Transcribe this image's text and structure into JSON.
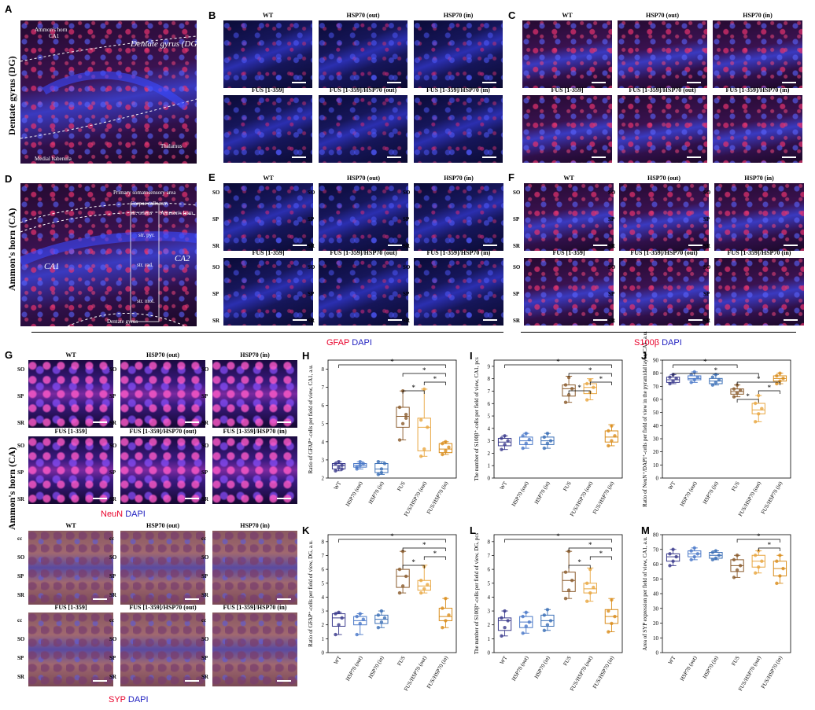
{
  "panels": {
    "A": {
      "label": "A",
      "side": "Dentate gyrus (DG)",
      "texts": [
        "Ammon's horn",
        "CA1",
        "Dentate gyrus (DG)",
        "Thalamus",
        "Medial habenula"
      ]
    },
    "B": {
      "label": "B",
      "titles": [
        "WT",
        "HSP70 (out)",
        "HSP70 (in)",
        "FUS [1-359]",
        "FUS [1-359]/HSP70 (out)",
        "FUS [1-359]/HSP70 (in)"
      ]
    },
    "C": {
      "label": "C",
      "titles": [
        "WT",
        "HSP70 (out)",
        "HSP70 (in)",
        "FUS [1-359]",
        "FUS [1-359]/HSP70 (out)",
        "FUS [1-359]/HSP70 (in)"
      ]
    },
    "D": {
      "label": "D",
      "side": "Ammon's horn (CA)",
      "texts": [
        "Primary somatosensory area",
        "Corpus callosum",
        "str. oriens",
        "Ammon's horn",
        "str. pyr.",
        "CA1",
        "CA2",
        "str. rad.",
        "str. mol.",
        "Dentate gyrus"
      ]
    },
    "E": {
      "label": "E",
      "titles": [
        "WT",
        "HSP70 (out)",
        "HSP70 (in)",
        "FUS [1-359]",
        "FUS [1-359]/HSP70 (out)",
        "FUS [1-359]/HSP70 (in)"
      ],
      "layers": [
        "SO",
        "SP",
        "SR"
      ]
    },
    "F": {
      "label": "F",
      "titles": [
        "WT",
        "HSP70 (out)",
        "HSP70 (in)",
        "FUS [1-359]",
        "FUS [1-359]/HSP70 (out)",
        "FUS [1-359]/HSP70 (in)"
      ],
      "layers": [
        "SO",
        "SP",
        "SR"
      ]
    },
    "G": {
      "label": "G",
      "side": "Ammon's horn (CA)",
      "neun_titles": [
        "WT",
        "HSP70 (out)",
        "HSP70 (in)",
        "FUS [1-359]",
        "FUS [1-359]/HSP70 (out)",
        "FUS [1-359]/HSP70 (in)"
      ],
      "syp_titles": [
        "WT",
        "HSP70 (out)",
        "HSP70 (in)",
        "FUS [1-359]",
        "FUS [1-359]/HSP70 (out)",
        "FUS [1-359]/HSP70 (in)"
      ],
      "layers": [
        "SO",
        "SP",
        "SR"
      ],
      "syp_layers": [
        "cc",
        "SO",
        "SP",
        "SR"
      ]
    }
  },
  "stains": {
    "gfap": {
      "red": "GFAP",
      "blue": "DAPI"
    },
    "s100": {
      "red": "S100β",
      "blue": "DAPI"
    },
    "neun": {
      "red": "NeuN",
      "blue": "DAPI"
    },
    "syp": {
      "red": "SYP",
      "blue": "DAPI"
    }
  },
  "colors": {
    "red": "#e8002a",
    "blue": "#2020c0"
  },
  "chart_data": [
    {
      "panel": "H",
      "type": "box",
      "ylabel": "Ratio of GFAP⁺-cells per field of view, CA1, a.u.",
      "ylim": [
        2,
        8.5
      ],
      "yticks": [
        2,
        3,
        4,
        5,
        6,
        7,
        8
      ],
      "categories": [
        "WT",
        "HSP70 (out)",
        "HSP70 (in)",
        "FUS",
        "FUS/HSP70 (out)",
        "FUS/HSP70 (in)"
      ],
      "boxes": [
        {
          "min": 2.4,
          "q1": 2.5,
          "median": 2.7,
          "q3": 2.8,
          "max": 2.9,
          "points": [
            2.4,
            2.6,
            2.7,
            2.8,
            2.9,
            2.5
          ]
        },
        {
          "min": 2.5,
          "q1": 2.6,
          "median": 2.7,
          "q3": 2.8,
          "max": 2.9,
          "points": [
            2.5,
            2.7,
            2.8,
            2.6,
            2.9
          ]
        },
        {
          "min": 2.2,
          "q1": 2.3,
          "median": 2.5,
          "q3": 2.8,
          "max": 2.9,
          "points": [
            2.2,
            2.5,
            2.8,
            2.9,
            2.3
          ]
        },
        {
          "min": 4.1,
          "q1": 4.8,
          "median": 5.4,
          "q3": 5.9,
          "max": 6.8,
          "points": [
            4.1,
            5.0,
            5.5,
            5.9,
            6.8,
            5.3
          ]
        },
        {
          "min": 3.2,
          "q1": 3.5,
          "median": 4.8,
          "q3": 5.3,
          "max": 6.9,
          "points": [
            3.2,
            3.6,
            4.8,
            5.2,
            6.9
          ]
        },
        {
          "min": 3.3,
          "q1": 3.4,
          "median": 3.6,
          "q3": 3.9,
          "max": 4.0,
          "points": [
            3.3,
            3.5,
            3.7,
            3.9,
            4.0
          ]
        }
      ],
      "significance": [
        [
          "WT",
          "FUS/HSP70 (in)",
          "*"
        ],
        [
          "FUS",
          "FUS/HSP70 (in)",
          "*"
        ],
        [
          "FUS/HSP70 (out)",
          "FUS/HSP70 (in)",
          "*"
        ],
        [
          "FUS",
          "FUS/HSP70 (out)",
          "*"
        ]
      ]
    },
    {
      "panel": "I",
      "type": "box",
      "ylabel": "The number of S100β⁺-cells per field of view, CA1, pcs",
      "ylim": [
        0,
        9.5
      ],
      "yticks": [
        0,
        1,
        2,
        3,
        4,
        5,
        6,
        7,
        8,
        9
      ],
      "categories": [
        "WT",
        "HSP70 (out)",
        "HSP70 (in)",
        "FUS",
        "FUS/HSP70 (out)",
        "FUS/HSP70 (in)"
      ],
      "boxes": [
        {
          "min": 2.3,
          "q1": 2.6,
          "median": 2.9,
          "q3": 3.2,
          "max": 3.4,
          "points": [
            2.3,
            2.7,
            3.0,
            3.2,
            3.4
          ]
        },
        {
          "min": 2.4,
          "q1": 2.7,
          "median": 3.0,
          "q3": 3.3,
          "max": 3.6,
          "points": [
            2.4,
            2.8,
            3.1,
            3.4,
            3.6
          ]
        },
        {
          "min": 2.4,
          "q1": 2.7,
          "median": 3.0,
          "q3": 3.3,
          "max": 3.6,
          "points": [
            2.4,
            2.8,
            3.0,
            3.3,
            3.6
          ]
        },
        {
          "min": 6.1,
          "q1": 6.6,
          "median": 7.2,
          "q3": 7.5,
          "max": 8.2,
          "points": [
            6.1,
            6.7,
            7.2,
            7.5,
            8.1
          ]
        },
        {
          "min": 6.3,
          "q1": 6.8,
          "median": 7.3,
          "q3": 7.6,
          "max": 8.0,
          "points": [
            6.3,
            6.9,
            7.3,
            7.6,
            7.9
          ]
        },
        {
          "min": 2.6,
          "q1": 2.9,
          "median": 3.3,
          "q3": 3.8,
          "max": 4.3,
          "points": [
            2.6,
            3.0,
            3.4,
            3.8,
            4.2
          ]
        }
      ],
      "significance": [
        [
          "WT",
          "FUS/HSP70 (in)",
          "*"
        ],
        [
          "FUS",
          "FUS/HSP70 (in)",
          "*"
        ],
        [
          "FUS/HSP70 (out)",
          "FUS/HSP70 (in)",
          "*"
        ],
        [
          "FUS",
          "FUS/HSP70 (out)",
          "*"
        ]
      ]
    },
    {
      "panel": "J",
      "type": "box",
      "ylabel": "Ratio of NeuN⁺/DAPI⁺-cells per field of view in the pyramidal layer, CA1, a.u.",
      "ylim": [
        0,
        90
      ],
      "yticks": [
        0,
        10,
        20,
        30,
        40,
        50,
        60,
        70,
        80,
        90
      ],
      "categories": [
        "WT",
        "HSP70 (out)",
        "HSP70 (in)",
        "FUS",
        "FUS/HSP70 (out)",
        "FUS/HSP70 (in)"
      ],
      "boxes": [
        {
          "min": 72,
          "q1": 73,
          "median": 75,
          "q3": 77,
          "max": 79,
          "points": [
            72,
            74,
            76,
            77,
            79
          ]
        },
        {
          "min": 73,
          "q1": 75,
          "median": 76,
          "q3": 78,
          "max": 81,
          "points": [
            73,
            75,
            77,
            79,
            81
          ]
        },
        {
          "min": 71,
          "q1": 72,
          "median": 74,
          "q3": 76,
          "max": 79,
          "points": [
            71,
            73,
            75,
            77,
            79
          ]
        },
        {
          "min": 62,
          "q1": 64,
          "median": 66,
          "q3": 68,
          "max": 71,
          "points": [
            62,
            65,
            67,
            68,
            71
          ]
        },
        {
          "min": 43,
          "q1": 49,
          "median": 52,
          "q3": 57,
          "max": 63,
          "points": [
            43,
            49,
            53,
            57,
            63
          ]
        },
        {
          "min": 72,
          "q1": 74,
          "median": 76,
          "q3": 78,
          "max": 80,
          "points": [
            72,
            74,
            76,
            78,
            80
          ]
        }
      ],
      "significance": [
        [
          "WT",
          "FUS",
          "*"
        ],
        [
          "WT",
          "FUS/HSP70 (out)",
          "*"
        ],
        [
          "FUS",
          "FUS/HSP70 (in)",
          "*"
        ],
        [
          "FUS/HSP70 (out)",
          "FUS/HSP70 (in)",
          "*"
        ],
        [
          "FUS",
          "FUS/HSP70 (out)",
          "*"
        ]
      ]
    },
    {
      "panel": "K",
      "type": "box",
      "ylabel": "Ratio of GFAP⁺-cells per field of view, DG, a.u.",
      "ylim": [
        0,
        8.5
      ],
      "yticks": [
        0,
        1,
        2,
        3,
        4,
        5,
        6,
        7,
        8
      ],
      "categories": [
        "WT",
        "HSP70 (out)",
        "HSP70 (in)",
        "FUS",
        "FUS/HSP70 (out)",
        "FUS/HSP70 (in)"
      ],
      "boxes": [
        {
          "min": 1.3,
          "q1": 1.9,
          "median": 2.5,
          "q3": 2.8,
          "max": 2.9,
          "points": [
            1.3,
            2.0,
            2.5,
            2.8,
            2.9
          ]
        },
        {
          "min": 1.3,
          "q1": 2.0,
          "median": 2.3,
          "q3": 2.6,
          "max": 2.8,
          "points": [
            1.3,
            2.1,
            2.4,
            2.6,
            2.8
          ]
        },
        {
          "min": 1.8,
          "q1": 2.1,
          "median": 2.4,
          "q3": 2.7,
          "max": 3.0,
          "points": [
            1.8,
            2.2,
            2.5,
            2.7,
            3.0
          ]
        },
        {
          "min": 4.3,
          "q1": 4.7,
          "median": 5.5,
          "q3": 6.0,
          "max": 7.3,
          "points": [
            4.3,
            4.8,
            5.5,
            6.0,
            7.3
          ]
        },
        {
          "min": 4.3,
          "q1": 4.5,
          "median": 4.8,
          "q3": 5.2,
          "max": 6.3,
          "points": [
            4.3,
            4.6,
            4.9,
            5.2,
            6.2
          ]
        },
        {
          "min": 1.8,
          "q1": 2.3,
          "median": 2.6,
          "q3": 3.2,
          "max": 3.9,
          "points": [
            1.8,
            2.3,
            2.7,
            3.2,
            3.9
          ]
        }
      ],
      "significance": [
        [
          "WT",
          "FUS/HSP70 (in)",
          "*"
        ],
        [
          "FUS",
          "FUS/HSP70 (in)",
          "*"
        ],
        [
          "FUS/HSP70 (out)",
          "FUS/HSP70 (in)",
          "*"
        ],
        [
          "FUS",
          "FUS/HSP70 (out)",
          "*"
        ]
      ]
    },
    {
      "panel": "L",
      "type": "box",
      "ylabel": "The number of S100β⁺-cells per field of view, DG, pcs",
      "ylim": [
        0,
        8.5
      ],
      "yticks": [
        0,
        1,
        2,
        3,
        4,
        5,
        6,
        7,
        8
      ],
      "categories": [
        "WT",
        "HSP70 (out)",
        "HSP70 (in)",
        "FUS",
        "FUS/HSP70 (out)",
        "FUS/HSP70 (in)"
      ],
      "boxes": [
        {
          "min": 1.2,
          "q1": 1.6,
          "median": 2.3,
          "q3": 2.5,
          "max": 3.0,
          "points": [
            1.2,
            1.8,
            2.3,
            2.5,
            3.0
          ]
        },
        {
          "min": 1.4,
          "q1": 1.8,
          "median": 2.2,
          "q3": 2.6,
          "max": 2.9,
          "points": [
            1.4,
            1.9,
            2.2,
            2.6,
            2.9
          ]
        },
        {
          "min": 1.6,
          "q1": 1.9,
          "median": 2.3,
          "q3": 2.7,
          "max": 3.1,
          "points": [
            1.6,
            2.0,
            2.3,
            2.7,
            3.1
          ]
        },
        {
          "min": 3.9,
          "q1": 4.4,
          "median": 5.2,
          "q3": 5.8,
          "max": 7.3,
          "points": [
            3.9,
            4.5,
            5.2,
            5.8,
            7.3
          ]
        },
        {
          "min": 3.7,
          "q1": 4.3,
          "median": 4.6,
          "q3": 5.0,
          "max": 6.1,
          "points": [
            3.7,
            4.3,
            4.7,
            5.0,
            6.0
          ]
        },
        {
          "min": 1.5,
          "q1": 2.1,
          "median": 2.6,
          "q3": 3.1,
          "max": 3.9,
          "points": [
            1.5,
            2.1,
            2.6,
            3.0,
            3.8
          ]
        }
      ],
      "significance": [
        [
          "WT",
          "FUS/HSP70 (in)",
          "*"
        ],
        [
          "FUS",
          "FUS/HSP70 (in)",
          "*"
        ],
        [
          "FUS/HSP70 (out)",
          "FUS/HSP70 (in)",
          "*"
        ],
        [
          "FUS",
          "FUS/HSP70 (out)",
          "*"
        ]
      ]
    },
    {
      "panel": "M",
      "type": "box",
      "ylabel": "Area of SYP expression per field of view, CA1, a.u.",
      "ylim": [
        0,
        80
      ],
      "yticks": [
        0,
        10,
        20,
        30,
        40,
        50,
        60,
        70,
        80
      ],
      "categories": [
        "WT",
        "HSP70 (out)",
        "HSP70 (in)",
        "FUS",
        "FUS/HSP70 (out)",
        "FUS/HSP70 (in)"
      ],
      "boxes": [
        {
          "min": 59,
          "q1": 62,
          "median": 65,
          "q3": 67,
          "max": 70,
          "points": [
            59,
            62,
            65,
            67,
            70
          ]
        },
        {
          "min": 63,
          "q1": 65,
          "median": 67,
          "q3": 69,
          "max": 71,
          "points": [
            63,
            65,
            67,
            69,
            71
          ]
        },
        {
          "min": 63,
          "q1": 64,
          "median": 66,
          "q3": 68,
          "max": 69,
          "points": [
            63,
            64,
            66,
            68,
            69
          ]
        },
        {
          "min": 51,
          "q1": 55,
          "median": 59,
          "q3": 63,
          "max": 66,
          "points": [
            51,
            56,
            59,
            63,
            66
          ]
        },
        {
          "min": 54,
          "q1": 58,
          "median": 62,
          "q3": 66,
          "max": 69,
          "points": [
            54,
            58,
            62,
            66,
            69
          ]
        },
        {
          "min": 47,
          "q1": 52,
          "median": 57,
          "q3": 62,
          "max": 66,
          "points": [
            47,
            52,
            57,
            62,
            66
          ]
        }
      ],
      "significance": [
        [
          "FUS",
          "FUS/HSP70 (in)",
          "*"
        ],
        [
          "FUS/HSP70 (out)",
          "FUS/HSP70 (in)",
          "*"
        ]
      ]
    }
  ],
  "box_colors": [
    "#3a3a8c",
    "#4a78c8",
    "#3b6fb6",
    "#8a5a2b",
    "#e8a640",
    "#d98c1a"
  ]
}
